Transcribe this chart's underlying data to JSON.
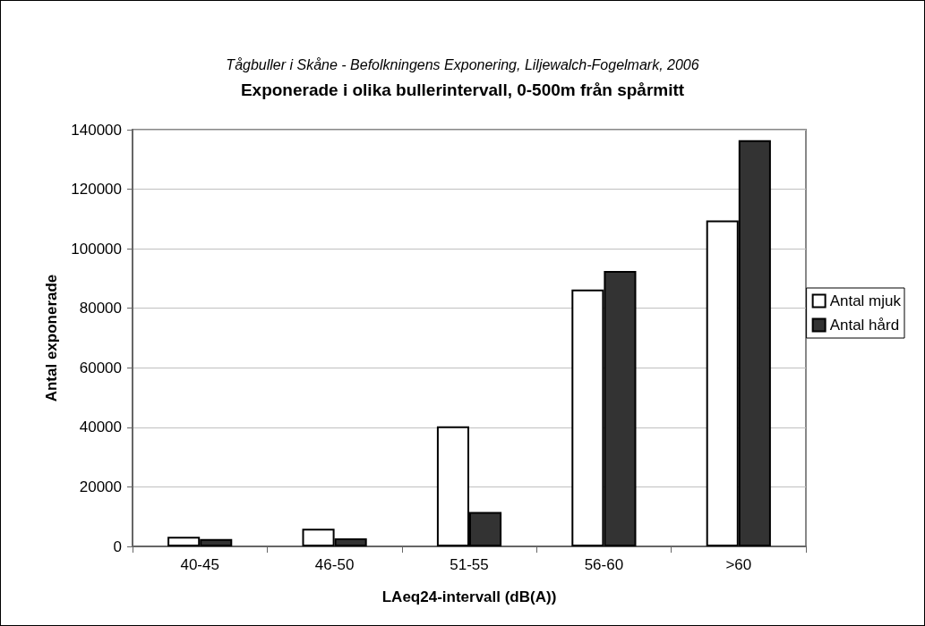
{
  "chart_data": {
    "type": "bar",
    "subtitle": "Tågbuller i Skåne - Befolkningens Exponering, Liljewalch-Fogelmark, 2006",
    "title": "Exponerade i olika bullerintervall, 0-500m från spårmitt",
    "xlabel": "LAeq24-intervall (dB(A))",
    "ylabel": "Antal exponerade",
    "categories": [
      "40-45",
      "46-50",
      "51-55",
      "56-60",
      ">60"
    ],
    "series": [
      {
        "name": "Antal mjuk",
        "color": "#ffffff",
        "values": [
          3200,
          5900,
          40300,
          86300,
          109500
        ]
      },
      {
        "name": "Antal hård",
        "color": "#333333",
        "values": [
          2500,
          2700,
          11600,
          92500,
          136500
        ]
      }
    ],
    "ylim": [
      0,
      140000
    ],
    "yticks": [
      0,
      20000,
      40000,
      60000,
      80000,
      100000,
      120000,
      140000
    ],
    "grid": "y",
    "legend": "right"
  }
}
